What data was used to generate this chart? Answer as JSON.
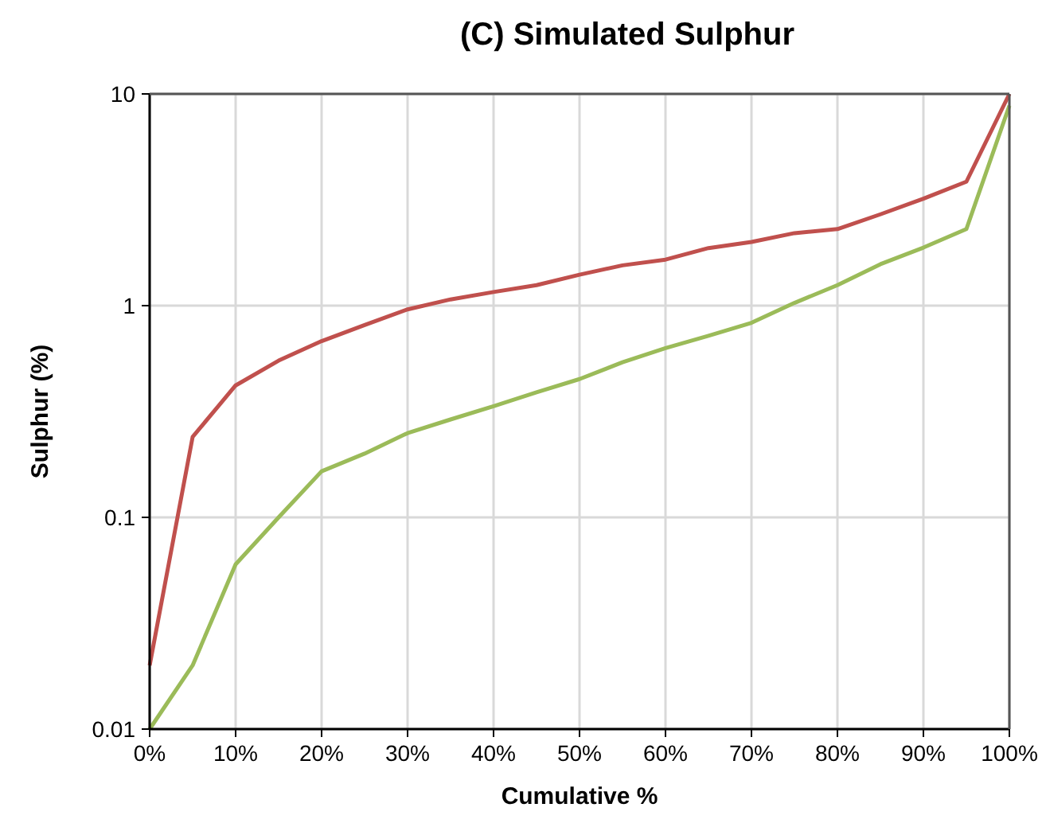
{
  "chart_data": {
    "type": "line",
    "title": "(C) Simulated Sulphur",
    "xlabel": "Cumulative %",
    "ylabel": "Sulphur (%)",
    "x": [
      0,
      5,
      10,
      15,
      20,
      25,
      30,
      35,
      40,
      45,
      50,
      55,
      60,
      65,
      70,
      75,
      80,
      85,
      90,
      95,
      100
    ],
    "series": [
      {
        "color": "#c0504d",
        "values": [
          0.02,
          0.24,
          0.42,
          0.55,
          0.68,
          0.81,
          0.96,
          1.07,
          1.16,
          1.25,
          1.4,
          1.55,
          1.65,
          1.87,
          2.0,
          2.2,
          2.3,
          2.7,
          3.2,
          3.85,
          10
        ]
      },
      {
        "color": "#9bbb59",
        "values": [
          0.01,
          0.02,
          0.06,
          0.1,
          0.165,
          0.2,
          0.25,
          0.29,
          0.335,
          0.39,
          0.45,
          0.54,
          0.63,
          0.72,
          0.83,
          1.03,
          1.25,
          1.57,
          1.88,
          2.3,
          8.8
        ]
      }
    ],
    "xlim": [
      0,
      100
    ],
    "xticks": [
      {
        "value": 0,
        "label": "0%"
      },
      {
        "value": 10,
        "label": "10%"
      },
      {
        "value": 20,
        "label": "20%"
      },
      {
        "value": 30,
        "label": "30%"
      },
      {
        "value": 40,
        "label": "40%"
      },
      {
        "value": 50,
        "label": "50%"
      },
      {
        "value": 60,
        "label": "60%"
      },
      {
        "value": 70,
        "label": "70%"
      },
      {
        "value": 80,
        "label": "80%"
      },
      {
        "value": 90,
        "label": "90%"
      },
      {
        "value": 100,
        "label": "100%"
      }
    ],
    "ylim": [
      0.01,
      10
    ],
    "yticks": [
      0.01,
      0.1,
      1,
      10
    ],
    "log": true,
    "grid": true,
    "marker": "none",
    "line_style": "solid"
  }
}
